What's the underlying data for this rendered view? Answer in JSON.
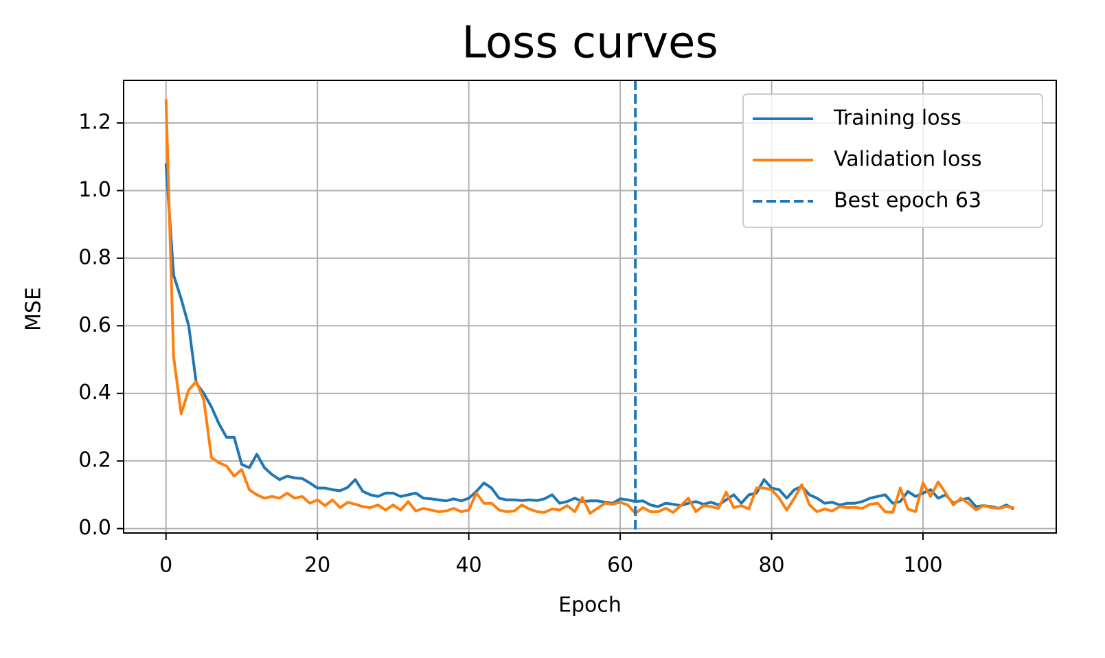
{
  "chart_data": {
    "type": "line",
    "title": "Loss curves",
    "xlabel": "Epoch",
    "ylabel": "MSE",
    "x": [
      0,
      1,
      2,
      3,
      4,
      5,
      6,
      7,
      8,
      9,
      10,
      11,
      12,
      13,
      14,
      15,
      16,
      17,
      18,
      19,
      20,
      21,
      22,
      23,
      24,
      25,
      26,
      27,
      28,
      29,
      30,
      31,
      32,
      33,
      34,
      35,
      36,
      37,
      38,
      39,
      40,
      41,
      42,
      43,
      44,
      45,
      46,
      47,
      48,
      49,
      50,
      51,
      52,
      53,
      54,
      55,
      56,
      57,
      58,
      59,
      60,
      61,
      62,
      63,
      64,
      65,
      66,
      67,
      68,
      69,
      70,
      71,
      72,
      73,
      74,
      75,
      76,
      77,
      78,
      79,
      80,
      81,
      82,
      83,
      84,
      85,
      86,
      87,
      88,
      89,
      90,
      91,
      92,
      93,
      94,
      95,
      96,
      97,
      98,
      99,
      100,
      101,
      102,
      103,
      104,
      105,
      106,
      107,
      108,
      109,
      110,
      111,
      112
    ],
    "series": [
      {
        "name": "Training loss",
        "color": "#1f77b4",
        "values": [
          1.08,
          0.75,
          0.68,
          0.6,
          0.43,
          0.4,
          0.36,
          0.31,
          0.27,
          0.27,
          0.19,
          0.18,
          0.22,
          0.18,
          0.16,
          0.145,
          0.155,
          0.15,
          0.148,
          0.135,
          0.12,
          0.12,
          0.115,
          0.112,
          0.122,
          0.145,
          0.11,
          0.1,
          0.095,
          0.105,
          0.105,
          0.095,
          0.1,
          0.105,
          0.09,
          0.088,
          0.085,
          0.082,
          0.088,
          0.082,
          0.09,
          0.11,
          0.135,
          0.12,
          0.09,
          0.085,
          0.085,
          0.083,
          0.085,
          0.083,
          0.088,
          0.1,
          0.075,
          0.08,
          0.09,
          0.08,
          0.082,
          0.082,
          0.078,
          0.075,
          0.088,
          0.085,
          0.08,
          0.082,
          0.07,
          0.065,
          0.075,
          0.072,
          0.068,
          0.075,
          0.08,
          0.072,
          0.078,
          0.07,
          0.085,
          0.1,
          0.075,
          0.1,
          0.105,
          0.145,
          0.12,
          0.115,
          0.09,
          0.115,
          0.125,
          0.1,
          0.09,
          0.075,
          0.078,
          0.07,
          0.075,
          0.075,
          0.08,
          0.09,
          0.095,
          0.1,
          0.075,
          0.08,
          0.11,
          0.095,
          0.105,
          0.115,
          0.09,
          0.1,
          0.075,
          0.085,
          0.09,
          0.065,
          0.068,
          0.065,
          0.06,
          0.07,
          0.058
        ]
      },
      {
        "name": "Validation loss",
        "color": "#ff7f0e",
        "values": [
          1.27,
          0.51,
          0.34,
          0.41,
          0.435,
          0.38,
          0.21,
          0.195,
          0.185,
          0.155,
          0.175,
          0.115,
          0.1,
          0.09,
          0.095,
          0.09,
          0.105,
          0.09,
          0.095,
          0.075,
          0.085,
          0.068,
          0.085,
          0.062,
          0.078,
          0.072,
          0.065,
          0.062,
          0.07,
          0.055,
          0.07,
          0.055,
          0.08,
          0.052,
          0.06,
          0.055,
          0.05,
          0.052,
          0.06,
          0.05,
          0.055,
          0.105,
          0.075,
          0.075,
          0.055,
          0.05,
          0.052,
          0.07,
          0.058,
          0.05,
          0.048,
          0.058,
          0.055,
          0.068,
          0.05,
          0.092,
          0.045,
          0.06,
          0.075,
          0.072,
          0.078,
          0.07,
          0.045,
          0.062,
          0.05,
          0.05,
          0.06,
          0.048,
          0.068,
          0.09,
          0.05,
          0.068,
          0.065,
          0.06,
          0.108,
          0.062,
          0.068,
          0.058,
          0.12,
          0.12,
          0.115,
          0.09,
          0.055,
          0.09,
          0.13,
          0.07,
          0.05,
          0.058,
          0.052,
          0.065,
          0.062,
          0.063,
          0.06,
          0.072,
          0.075,
          0.05,
          0.048,
          0.12,
          0.058,
          0.05,
          0.135,
          0.095,
          0.138,
          0.105,
          0.07,
          0.09,
          0.075,
          0.055,
          0.068,
          0.062,
          0.06,
          0.065,
          0.062
        ]
      }
    ],
    "best_epoch": {
      "name": "Best epoch 63",
      "x": 62,
      "color": "#1f77b4",
      "dashed": true
    },
    "xlim": [
      -5.6,
      117.6
    ],
    "ylim": [
      -0.013,
      1.326
    ],
    "xticks": [
      0,
      20,
      40,
      60,
      80,
      100
    ],
    "yticks": [
      {
        "value": 0,
        "label": "0.0"
      },
      {
        "value": 0.2,
        "label": "0.2"
      },
      {
        "value": 0.4,
        "label": "0.4"
      },
      {
        "value": 0.6,
        "label": "0.6"
      },
      {
        "value": 0.8,
        "label": "0.8"
      },
      {
        "value": 1,
        "label": "1.0"
      },
      {
        "value": 1.2,
        "label": "1.2"
      }
    ],
    "grid": true,
    "legend": "upper-right"
  }
}
